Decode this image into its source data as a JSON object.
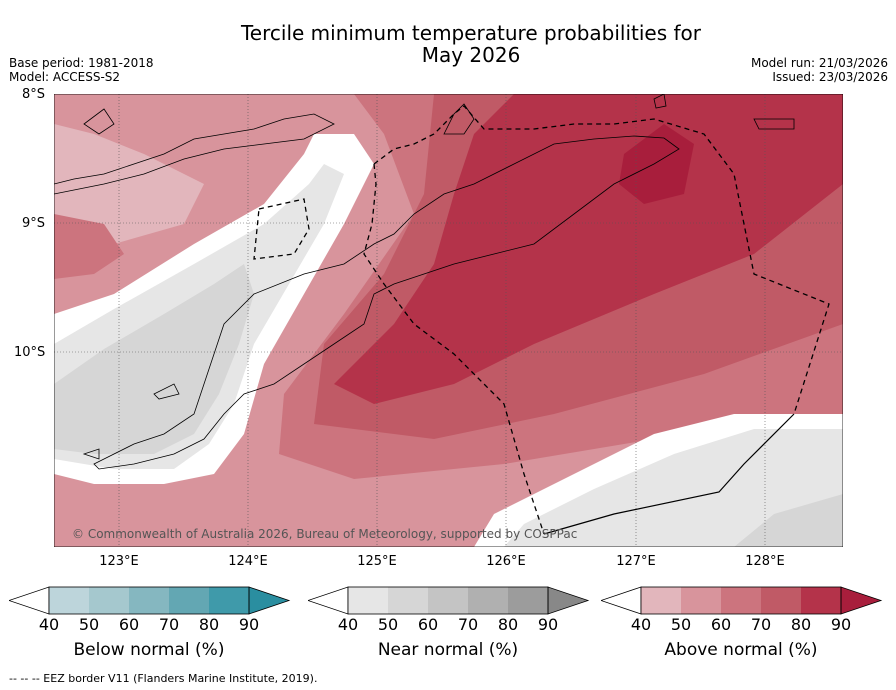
{
  "header": {
    "title_line1": "Tercile minimum temperature probabilities for",
    "title_line2": "May 2026",
    "base_period": "Base period: 1981-2018",
    "model": "Model: ACCESS-S2",
    "model_run": "Model run: 21/03/2026",
    "issued": "Issued: 23/03/2026"
  },
  "map": {
    "lat_labels": [
      "8°S",
      "9°S",
      "10°S"
    ],
    "lon_labels": [
      "123°E",
      "124°E",
      "125°E",
      "126°E",
      "127°E",
      "128°E"
    ],
    "copyright": "© Commonwealth of Australia 2026, Bureau of Meteorology, supported by COSPPac"
  },
  "colorbars": [
    {
      "title": "Below normal (%)",
      "ticks": [
        "40",
        "50",
        "60",
        "70",
        "80",
        "90"
      ],
      "colors": [
        "#bdd5db",
        "#a5c8ce",
        "#85b7c0",
        "#63a7b3",
        "#3f9aaa"
      ],
      "tip": "#2a8ea0"
    },
    {
      "title": "Near normal (%)",
      "ticks": [
        "40",
        "50",
        "60",
        "70",
        "80",
        "90"
      ],
      "colors": [
        "#e6e6e6",
        "#d6d6d6",
        "#c4c4c4",
        "#b0b0b0",
        "#9c9c9c"
      ],
      "tip": "#888888"
    },
    {
      "title": "Above normal (%)",
      "ticks": [
        "40",
        "50",
        "60",
        "70",
        "80",
        "90"
      ],
      "colors": [
        "#e2b6bc",
        "#d8949c",
        "#cc747e",
        "#c05a66",
        "#b4334a"
      ],
      "tip": "#a81e3c"
    }
  ],
  "footer": "--  --  -- EEZ border V11 (Flanders Marine Institute, 2019)."
}
